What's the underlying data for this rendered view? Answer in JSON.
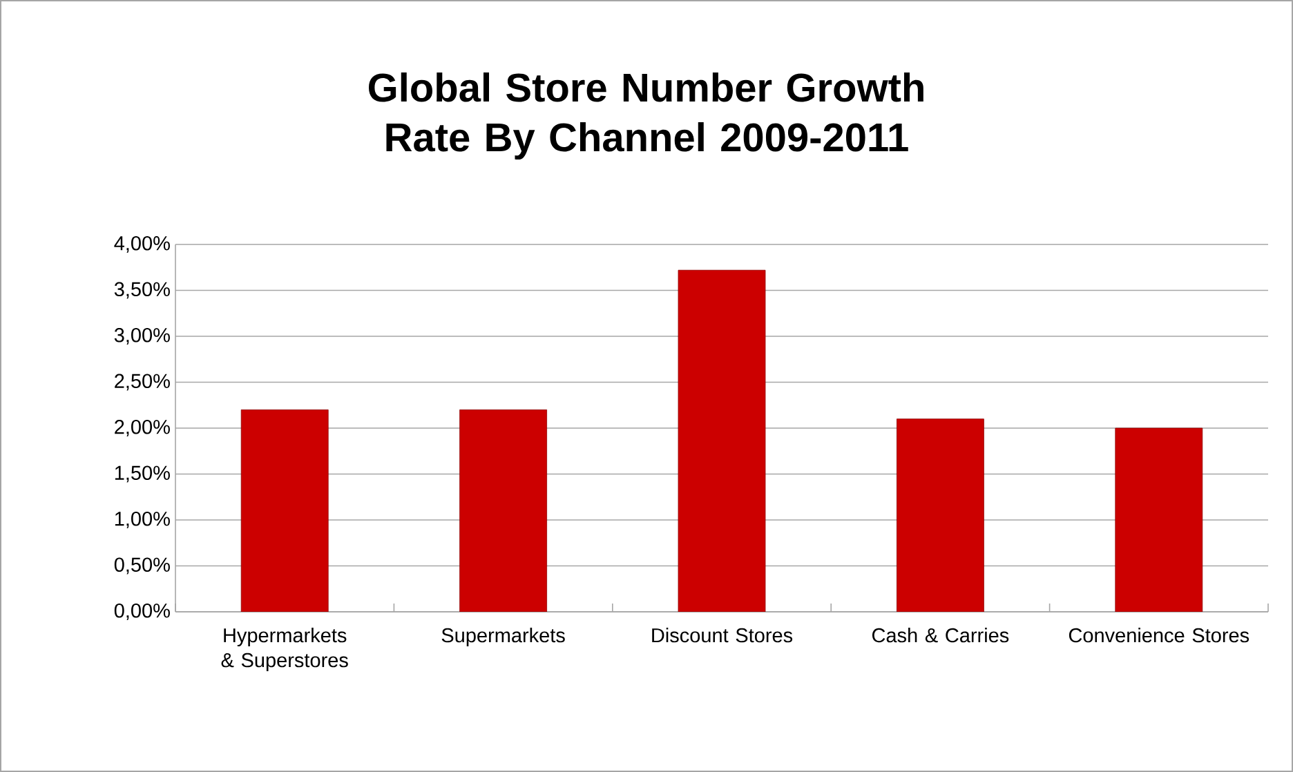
{
  "chart_data": {
    "type": "bar",
    "title": "Global Store Number Growth Rate By Channel 2009-2011",
    "categories": [
      "Hypermarkets & Superstores",
      "Supermarkets",
      "Discount Stores",
      "Cash & Carries",
      "Convenience Stores"
    ],
    "values": [
      2.2,
      2.2,
      3.72,
      2.1,
      2.0
    ],
    "color": "#cc0000",
    "ylim": [
      0,
      4
    ],
    "yticks": [
      {
        "value": 0,
        "label": "0,00%"
      },
      {
        "value": 0.5,
        "label": "0,50%"
      },
      {
        "value": 1,
        "label": "1,00%"
      },
      {
        "value": 1.5,
        "label": "1,50%"
      },
      {
        "value": 2,
        "label": "2,00%"
      },
      {
        "value": 2.5,
        "label": "2,50%"
      },
      {
        "value": 3,
        "label": "3,00%"
      },
      {
        "value": 3.5,
        "label": "3,50%"
      },
      {
        "value": 4,
        "label": "4,00%"
      }
    ],
    "grid": "y"
  }
}
